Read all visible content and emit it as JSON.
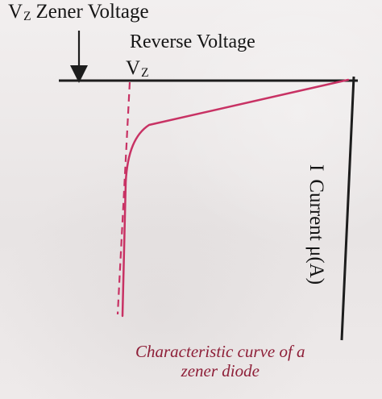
{
  "labels": {
    "zener_voltage_symbol": "V",
    "zener_voltage_subscript": "Z",
    "zener_voltage_text": "Zener Voltage",
    "reverse_voltage": "Reverse Voltage",
    "vz_symbol": "V",
    "vz_subscript": "Z",
    "current_symbol": "I",
    "current_text": "Current μ(A)"
  },
  "caption": {
    "line1": "Characteristic curve of a",
    "line2": "zener diode"
  },
  "colors": {
    "axis": "#1d1d1d",
    "curve": "#c83264",
    "caption": "#8e1f38"
  }
}
